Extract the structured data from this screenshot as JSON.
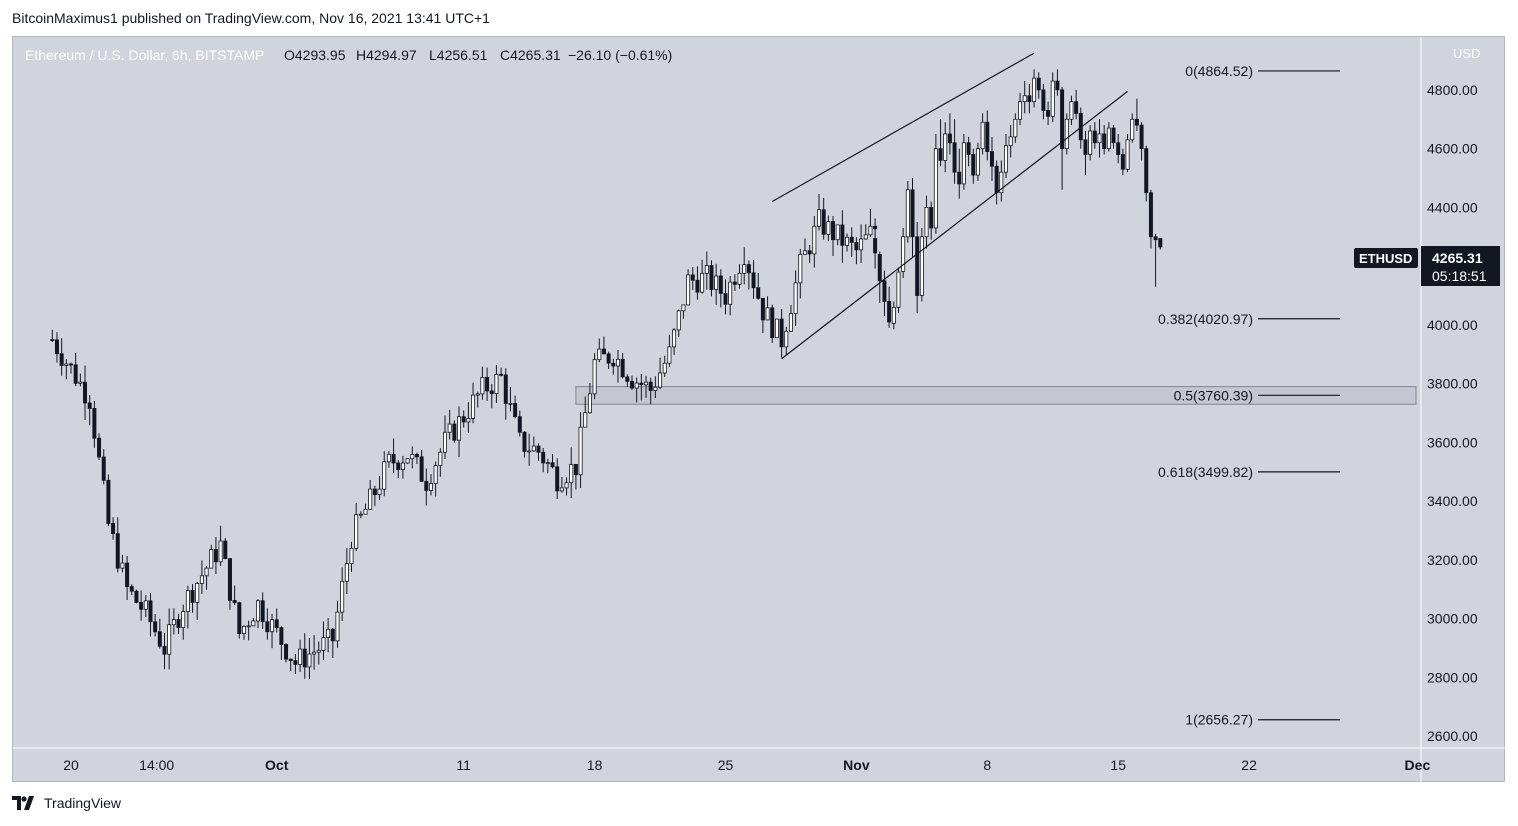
{
  "header": {
    "publisher_line": "BitcoinMaximus1 published on TradingView.com, Nov 16, 2021 13:41 UTC+1"
  },
  "footer": {
    "brand": "TradingView"
  },
  "legend": {
    "symbol": "Ethereum / U.S. Dollar, 6h, BITSTAMP",
    "open": "O4293.95",
    "high": "H4294.97",
    "low": "L4256.51",
    "close": "C4265.31",
    "change": "−26.10 (−0.61%)"
  },
  "price_scale": {
    "currency_label": "USD",
    "ticks": [
      "4800.00",
      "4600.00",
      "4400.00",
      "4000.00",
      "3800.00",
      "3600.00",
      "3400.00",
      "3200.00",
      "3000.00",
      "2800.00",
      "2600.00"
    ],
    "last_price_ticker": "ETHUSD",
    "last_price": "4265.31",
    "countdown": "05:18:51"
  },
  "time_scale": {
    "labels": [
      "20",
      "14:00",
      "Oct",
      "11",
      "18",
      "25",
      "Nov",
      "8",
      "15",
      "22",
      "Dec"
    ]
  },
  "colors": {
    "background": "#d1d4dc",
    "candle": "#131722",
    "zone_fill": "#c4c7d0",
    "zone_border": "#7f8490",
    "text": "#131722",
    "axis_line": "#ffffff"
  },
  "chart_data": {
    "type": "candlestick",
    "y_axis_scale": "linear",
    "ylim": [
      2560,
      4980
    ],
    "grid": false,
    "fib_levels": [
      {
        "label": "0(4864.52)",
        "value": 4864.52
      },
      {
        "label": "0.382(4020.97)",
        "value": 4020.97
      },
      {
        "label": "0.5(3760.39)",
        "value": 3760.39
      },
      {
        "label": "0.618(3499.82)",
        "value": 3499.82
      },
      {
        "label": "1(2656.27)",
        "value": 2656.27
      }
    ],
    "support_zone": {
      "from_date": "2021-10-17",
      "to_date": "2021-12-01",
      "low": 3730,
      "high": 3790
    },
    "wedge_lines": [
      {
        "from": {
          "date": "2021-10-27T12:00",
          "price": 4420
        },
        "to": {
          "date": "2021-11-10T12:00",
          "price": 4925
        }
      },
      {
        "from": {
          "date": "2021-10-28T00:00",
          "price": 3885
        },
        "to": {
          "date": "2021-11-15T12:00",
          "price": 4795
        }
      }
    ],
    "candles_6h": [
      [
        4294,
        4310,
        4192,
        4245
      ],
      [
        4240,
        4250,
        4075,
        4150
      ],
      [
        4150,
        4185,
        4030,
        4080
      ],
      [
        4080,
        4130,
        3990,
        4010
      ],
      [
        4005,
        4080,
        3985,
        4060
      ],
      [
        4060,
        4195,
        4040,
        4180
      ],
      [
        4182,
        4330,
        4160,
        4300
      ],
      [
        4300,
        4490,
        4280,
        4460
      ],
      [
        4460,
        4500,
        4230,
        4300
      ],
      [
        4300,
        4350,
        4040,
        4100
      ],
      [
        4100,
        4330,
        4080,
        4300
      ],
      [
        4300,
        4440,
        4260,
        4400
      ],
      [
        4400,
        4420,
        4290,
        4330
      ],
      [
        4330,
        4650,
        4310,
        4600
      ],
      [
        4600,
        4700,
        4540,
        4560
      ],
      [
        4560,
        4690,
        4520,
        4650
      ],
      [
        4650,
        4720,
        4580,
        4620
      ],
      [
        4620,
        4700,
        4480,
        4520
      ],
      [
        4520,
        4600,
        4430,
        4480
      ],
      [
        4480,
        4650,
        4460,
        4620
      ],
      [
        4620,
        4640,
        4540,
        4580
      ],
      [
        4580,
        4600,
        4480,
        4510
      ],
      [
        4510,
        4620,
        4490,
        4600
      ],
      [
        4600,
        4720,
        4580,
        4690
      ],
      [
        4690,
        4730,
        4560,
        4590
      ],
      [
        4590,
        4640,
        4490,
        4540
      ],
      [
        4540,
        4560,
        4410,
        4450
      ],
      [
        4450,
        4560,
        4420,
        4520
      ],
      [
        4520,
        4650,
        4500,
        4610
      ],
      [
        4610,
        4680,
        4570,
        4640
      ],
      [
        4640,
        4720,
        4620,
        4700
      ],
      [
        4700,
        4790,
        4680,
        4760
      ],
      [
        4760,
        4830,
        4720,
        4780
      ],
      [
        4780,
        4820,
        4720,
        4760
      ],
      [
        4760,
        4870,
        4740,
        4840
      ],
      [
        4840,
        4860,
        4770,
        4800
      ],
      [
        4800,
        4820,
        4700,
        4730
      ],
      [
        4730,
        4760,
        4680,
        4710
      ],
      [
        4710,
        4860,
        4690,
        4830
      ],
      [
        4830,
        4870,
        4780,
        4800
      ],
      [
        4800,
        4810,
        4460,
        4600
      ],
      [
        4600,
        4720,
        4580,
        4700
      ],
      [
        4700,
        4780,
        4680,
        4760
      ],
      [
        4760,
        4800,
        4700,
        4720
      ],
      [
        4720,
        4740,
        4600,
        4630
      ],
      [
        4630,
        4660,
        4510,
        4580
      ],
      [
        4580,
        4680,
        4560,
        4660
      ],
      [
        4660,
        4690,
        4600,
        4620
      ],
      [
        4620,
        4700,
        4570,
        4650
      ],
      [
        4650,
        4680,
        4580,
        4600
      ],
      [
        4600,
        4690,
        4590,
        4670
      ],
      [
        4670,
        4680,
        4600,
        4620
      ],
      [
        4620,
        4650,
        4550,
        4580
      ],
      [
        4580,
        4600,
        4510,
        4530
      ],
      [
        4530,
        4650,
        4520,
        4630
      ],
      [
        4630,
        4720,
        4620,
        4700
      ],
      [
        4700,
        4770,
        4660,
        4680
      ],
      [
        4680,
        4690,
        4560,
        4600
      ],
      [
        4600,
        4610,
        4420,
        4450
      ],
      [
        4450,
        4460,
        4260,
        4300
      ],
      [
        4300,
        4310,
        4130,
        4290
      ],
      [
        4293.95,
        4294.97,
        4256.51,
        4265.31
      ]
    ]
  }
}
